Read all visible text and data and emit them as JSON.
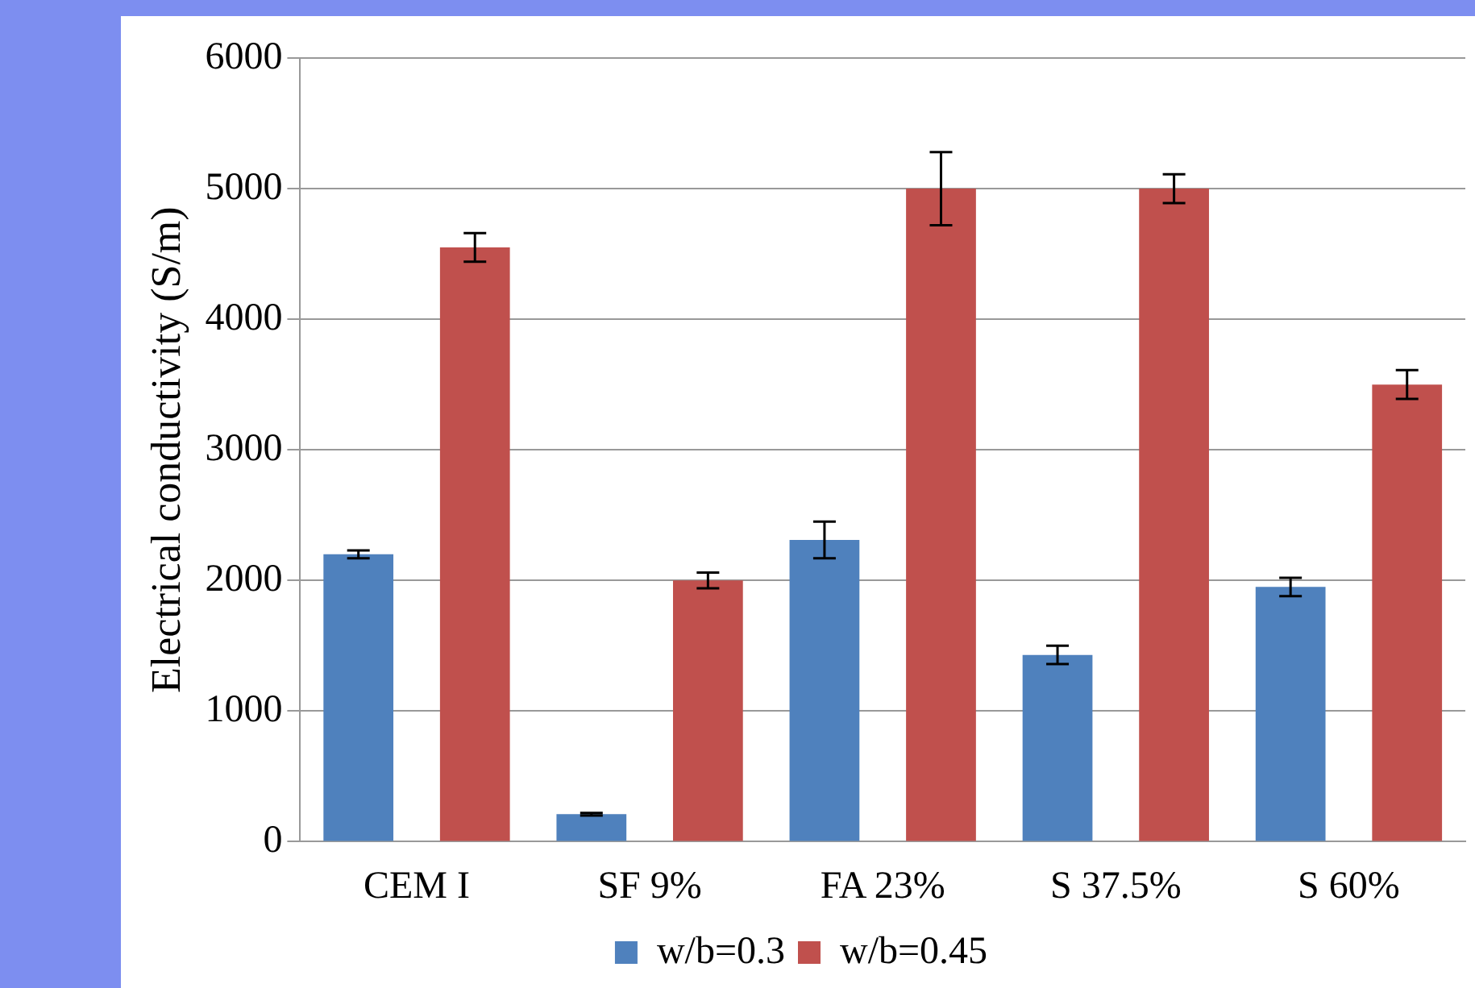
{
  "chart_data": {
    "type": "bar",
    "ylabel": "Electrical conductivity (S/m)",
    "categories": [
      "CEM I",
      "SF 9%",
      "FA 23%",
      "S 37.5%",
      "S 60%"
    ],
    "series": [
      {
        "name": "w/b=0.3",
        "color": "#4f81bd",
        "values": [
          2200,
          210,
          2310,
          1430,
          1950
        ],
        "errors": [
          30,
          10,
          140,
          70,
          70
        ]
      },
      {
        "name": "w/b=0.45",
        "color": "#c0504d",
        "values": [
          4550,
          2000,
          5000,
          5000,
          3500
        ],
        "errors": [
          110,
          60,
          280,
          110,
          110
        ]
      }
    ],
    "ylim": [
      0,
      6000
    ],
    "yticks": [
      0,
      1000,
      2000,
      3000,
      4000,
      5000,
      6000
    ],
    "grid": "y",
    "legend": "bottom"
  }
}
